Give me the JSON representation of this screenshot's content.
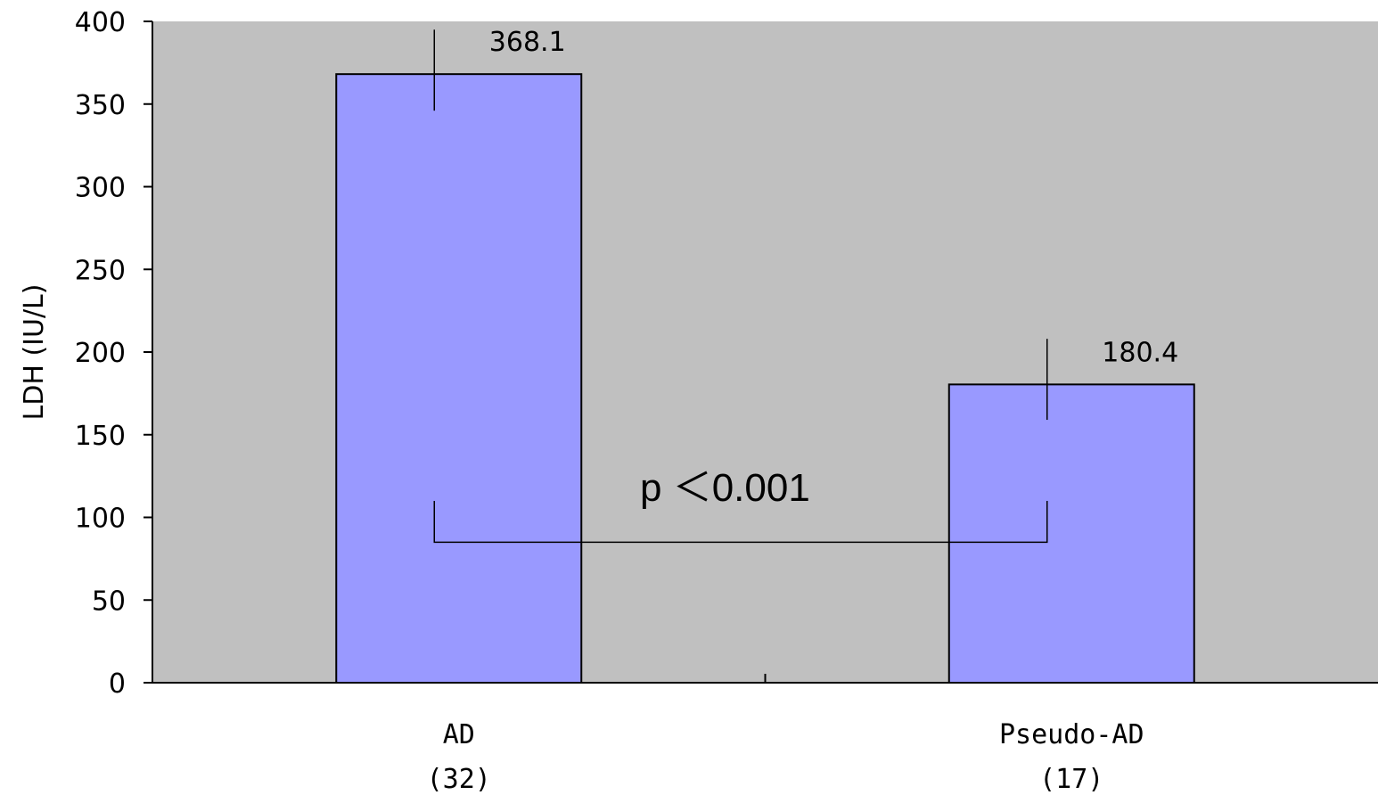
{
  "chart_data": {
    "type": "bar",
    "categories": [
      "AD",
      "Pseudo-AD"
    ],
    "category_sublabels": [
      "(32)",
      "(17)"
    ],
    "values": [
      368.1,
      180.4
    ],
    "data_labels": [
      "368.1",
      "180.4"
    ],
    "error_bars": [
      {
        "upper": 395,
        "lower": 346
      },
      {
        "upper": 208,
        "lower": 159
      }
    ],
    "title": "",
    "xlabel": "",
    "ylabel": "LDH (IU/L)",
    "ylim": [
      0,
      400
    ],
    "yticks": [
      0,
      50,
      100,
      150,
      200,
      250,
      300,
      350,
      400
    ],
    "grid": false,
    "legend": "none",
    "annotation": {
      "text": "p ＜0.001",
      "bracket_y": 85,
      "bracket_top": 110
    },
    "colors": {
      "plot_background": "#c0c0c0",
      "bar_fill": "#9999ff",
      "bar_stroke": "#000000",
      "axis": "#000000"
    }
  }
}
